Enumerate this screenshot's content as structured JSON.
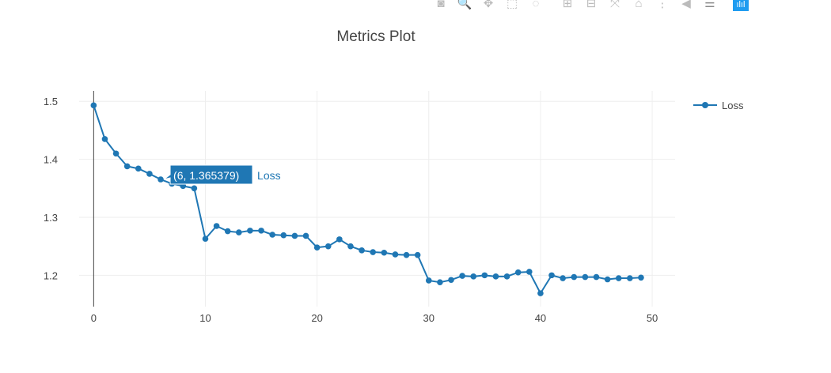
{
  "modebar": {
    "buttons": [
      {
        "name": "camera-icon",
        "glyph": "◙"
      },
      {
        "name": "zoom-icon",
        "glyph": "🔍"
      },
      {
        "name": "pan-icon",
        "glyph": "✥"
      },
      {
        "name": "box-select-icon",
        "glyph": "⬚"
      },
      {
        "name": "lasso-select-icon",
        "glyph": "◌"
      },
      {
        "name": "zoom-in-icon",
        "glyph": "⊞"
      },
      {
        "name": "zoom-out-icon",
        "glyph": "⊟"
      },
      {
        "name": "autoscale-icon",
        "glyph": "⤧"
      },
      {
        "name": "reset-axes-icon",
        "glyph": "⌂"
      },
      {
        "name": "spikelines-icon",
        "glyph": "⋮"
      },
      {
        "name": "hover-closest-icon",
        "glyph": "◀"
      },
      {
        "name": "hover-compare-icon",
        "glyph": "☰"
      },
      {
        "name": "plotly-logo-icon",
        "glyph": "ılıl"
      }
    ]
  },
  "chart_data": {
    "type": "line",
    "title": "Metrics Plot",
    "xlabel": "",
    "ylabel": "",
    "xlim": [
      -1.3,
      52.05
    ],
    "ylim": [
      1.146,
      1.518
    ],
    "xticks": [
      0,
      10,
      20,
      30,
      40,
      50
    ],
    "yticks": [
      1.2,
      1.3,
      1.4,
      1.5
    ],
    "ytick_labels": [
      "1.2",
      "1.3",
      "1.4",
      "1.5"
    ],
    "grid": true,
    "legend": {
      "placement": "top-right",
      "entries": [
        "Loss"
      ]
    },
    "series": [
      {
        "name": "Loss",
        "color": "#1f77b4",
        "x": [
          0,
          1,
          2,
          3,
          4,
          5,
          6,
          7,
          8,
          9,
          10,
          11,
          12,
          13,
          14,
          15,
          16,
          17,
          18,
          19,
          20,
          21,
          22,
          23,
          24,
          25,
          26,
          27,
          28,
          29,
          30,
          31,
          32,
          33,
          34,
          35,
          36,
          37,
          38,
          39,
          40,
          41,
          42,
          43,
          44,
          45,
          46,
          47,
          48,
          49
        ],
        "y": [
          1.493,
          1.435,
          1.41,
          1.388,
          1.384,
          1.375,
          1.365379,
          1.358,
          1.354,
          1.35,
          1.263,
          1.285,
          1.276,
          1.274,
          1.277,
          1.277,
          1.27,
          1.269,
          1.268,
          1.268,
          1.248,
          1.25,
          1.262,
          1.25,
          1.243,
          1.24,
          1.239,
          1.236,
          1.235,
          1.235,
          1.191,
          1.188,
          1.192,
          1.199,
          1.198,
          1.2,
          1.198,
          1.198,
          1.205,
          1.206,
          1.169,
          1.2,
          1.195,
          1.197,
          1.197,
          1.197,
          1.193,
          1.195,
          1.195,
          1.196
        ]
      }
    ],
    "hover": {
      "index": 6,
      "label": "(6, 1.365379)",
      "series": "Loss"
    }
  }
}
